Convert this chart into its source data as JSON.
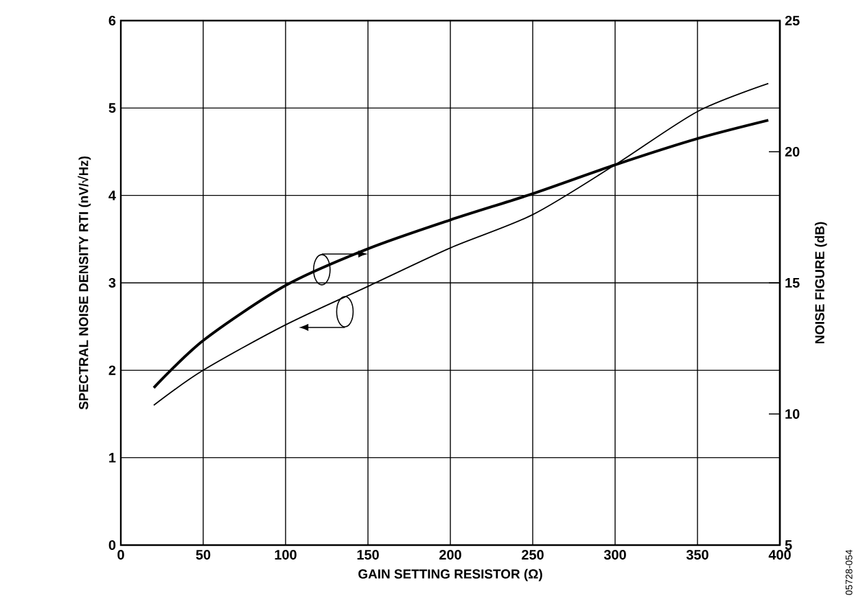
{
  "chart_data": {
    "type": "line",
    "xlabel": "GAIN SETTING RESISTOR (Ω)",
    "ylabel": "SPECTRAL NOISE DENSITY RTI (nV/√Hz)",
    "y2label": "NOISE FIGURE (dB)",
    "xlim": [
      0,
      400
    ],
    "xticks": [
      0,
      50,
      100,
      150,
      200,
      250,
      300,
      350,
      400
    ],
    "ylim": [
      0,
      6
    ],
    "yticks": [
      0,
      1,
      2,
      3,
      4,
      5,
      6
    ],
    "y2lim": [
      5,
      25
    ],
    "y2ticks": [
      5,
      10,
      15,
      20,
      25
    ],
    "grid": true,
    "x": [
      20,
      50,
      100,
      150,
      200,
      250,
      300,
      350,
      393
    ],
    "series": [
      {
        "color": "#000000",
        "values": [
          1.6,
          2.0,
          2.52,
          2.96,
          3.4,
          3.78,
          4.35,
          4.96,
          5.28
        ]
      },
      {
        "color": "#000000",
        "axis": "y2",
        "values": [
          11.0,
          12.8,
          14.9,
          16.3,
          17.4,
          18.4,
          19.5,
          20.5,
          21.2
        ]
      }
    ],
    "annotations": [
      "05728-054"
    ]
  }
}
